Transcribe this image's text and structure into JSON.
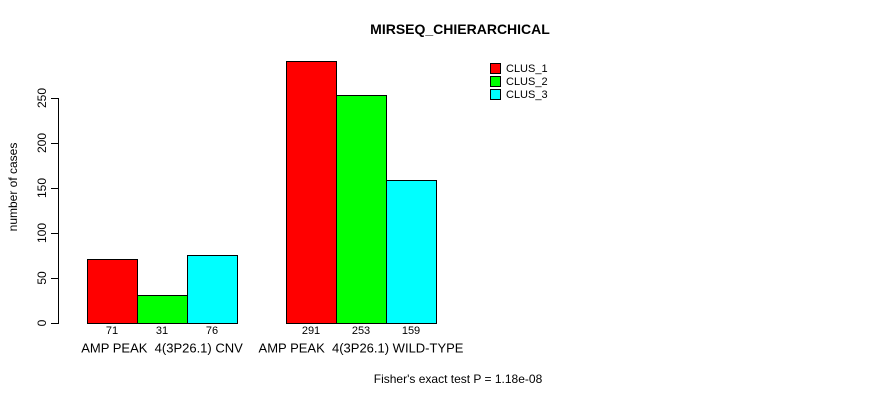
{
  "chart_data": {
    "type": "bar",
    "title": "MIRSEQ_CHIERARCHICAL",
    "ylabel": "number of cases",
    "xlabel": "",
    "categories": [
      "AMP PEAK  4(3P26.1) CNV",
      "AMP PEAK  4(3P26.1) WILD-TYPE"
    ],
    "series": [
      {
        "name": "CLUS_1",
        "color": "#ff0000",
        "values": [
          71,
          291
        ]
      },
      {
        "name": "CLUS_2",
        "color": "#00ff00",
        "values": [
          31,
          253
        ]
      },
      {
        "name": "CLUS_3",
        "color": "#00ffff",
        "values": [
          76,
          159
        ]
      }
    ],
    "yticks": [
      0,
      50,
      100,
      150,
      200,
      250
    ],
    "ylim": [
      0,
      300
    ],
    "grid": false,
    "bar_border_color": "#000000",
    "legend": {
      "position": "top-right",
      "entries": [
        "CLUS_1",
        "CLUS_2",
        "CLUS_3"
      ]
    },
    "annotation": "Fisher's exact test P = 1.18e-08"
  }
}
